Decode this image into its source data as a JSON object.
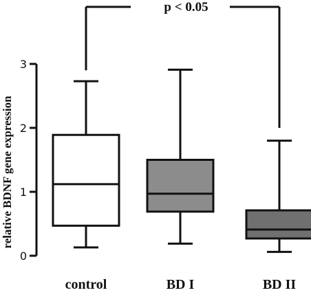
{
  "chart_data": {
    "type": "boxplot",
    "ylabel": "relative BDNF gene expression",
    "ylim": [
      0,
      3
    ],
    "yticks": [
      0,
      1,
      2,
      3
    ],
    "grid": false,
    "categories": [
      "control",
      "BD I",
      "BD II"
    ],
    "boxes": [
      {
        "category": "control",
        "min": 0.13,
        "q1": 0.47,
        "median": 1.12,
        "q3": 1.89,
        "max": 2.73,
        "fill": "#ffffff"
      },
      {
        "category": "BD I",
        "min": 0.19,
        "q1": 0.69,
        "median": 0.97,
        "q3": 1.5,
        "max": 2.91,
        "fill": "#8c8c8c"
      },
      {
        "category": "BD II",
        "min": 0.06,
        "q1": 0.27,
        "median": 0.41,
        "q3": 0.71,
        "max": 1.8,
        "fill": "#707070"
      }
    ],
    "annotation": {
      "text": "p < 0.05",
      "from": "control",
      "to": "BD II",
      "bracket_y": 3.95,
      "left_end_y": 2.9,
      "right_end_y": 2.0
    }
  }
}
